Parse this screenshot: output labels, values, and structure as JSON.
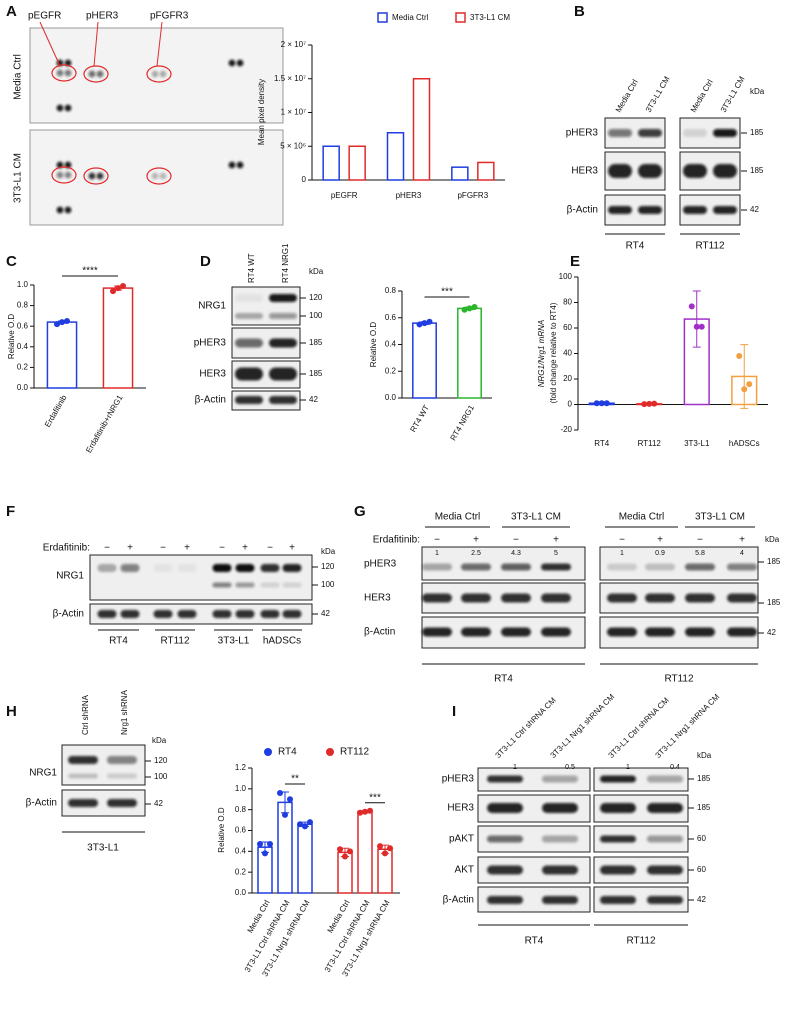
{
  "panel_labels": [
    "A",
    "B",
    "C",
    "D",
    "E",
    "F",
    "G",
    "H",
    "I"
  ],
  "array_blot": {
    "targets": [
      "pEGFR",
      "pHER3",
      "pFGFR3"
    ],
    "rows": [
      "Media Ctrl",
      "3T3-L1 CM"
    ]
  },
  "chart_data": [
    {
      "type": "bar",
      "bar_style": "outline",
      "legend": "top",
      "ylabel": "Mean pixel density",
      "categories": [
        "pEGFR",
        "pHER3",
        "pFGFR3"
      ],
      "series": [
        {
          "name": "Media Ctrl",
          "color": "#1f3de0",
          "values": [
            5000000,
            7000000,
            1900000
          ]
        },
        {
          "name": "3T3-L1 CM",
          "color": "#e02a2a",
          "values": [
            5000000,
            15000000,
            2600000
          ]
        }
      ],
      "ylim": [
        0,
        20000000
      ],
      "yticks": [
        0,
        {
          "value": 5000000,
          "label": "5 × 10⁶"
        },
        {
          "value": 10000000,
          "label": "1 × 10⁷"
        },
        {
          "value": 15000000,
          "label": "1.5 × 10⁷"
        },
        {
          "value": 20000000,
          "label": "2 × 10⁷"
        }
      ]
    },
    {
      "type": "bar",
      "bar_style": "outline",
      "ylabel": "Relative O.D",
      "categories": [
        "Erdafitinib",
        "Erdafitinib+rNRG1"
      ],
      "values": [
        0.64,
        0.97
      ],
      "errors": [
        0.01,
        0.02
      ],
      "points": [
        [
          0.62,
          0.64,
          0.65
        ],
        [
          0.94,
          0.97,
          0.99
        ]
      ],
      "colors": [
        "#1f3de0",
        "#e02a2a"
      ],
      "ylim": [
        0,
        1
      ],
      "yticks": [
        {
          "value": 0,
          "label": "0.0"
        },
        0.2,
        0.4,
        0.6,
        0.8,
        {
          "value": 1,
          "label": "1.0"
        }
      ],
      "significance": [
        "****"
      ]
    },
    {
      "type": "bar",
      "bar_style": "outline",
      "ylabel": "Relative O.D",
      "categories": [
        "RT4 WT",
        "RT4 NRG1"
      ],
      "values": [
        0.56,
        0.67
      ],
      "errors": [
        0.01,
        0.01
      ],
      "points": [
        [
          0.55,
          0.56,
          0.57
        ],
        [
          0.66,
          0.67,
          0.68
        ]
      ],
      "colors": [
        "#1f3de0",
        "#2ab52a"
      ],
      "ylim": [
        0,
        0.8
      ],
      "yticks": [
        {
          "value": 0,
          "label": "0.0"
        },
        0.2,
        0.4,
        0.6,
        0.8
      ],
      "significance": [
        "***"
      ]
    },
    {
      "type": "bar",
      "bar_style": "outline",
      "ylabel": "NRG1/Nrg1 mRNA",
      "ylabel_note": "(fold change relative to RT4)",
      "categories": [
        "RT4",
        "RT112",
        "3T3-L1",
        "hADSCs"
      ],
      "values": [
        1,
        0.5,
        67,
        22
      ],
      "errors": [
        0.5,
        0.3,
        22,
        25
      ],
      "points": [
        [
          1,
          1,
          1
        ],
        [
          0.3,
          0.5,
          0.7
        ],
        [
          77,
          61,
          61
        ],
        [
          38,
          12,
          16
        ]
      ],
      "colors": [
        "#1f3de0",
        "#e02a2a",
        "#a030c8",
        "#f0a040"
      ],
      "ylim": [
        -20,
        100
      ],
      "yticks": [
        -20,
        0,
        20,
        40,
        60,
        80,
        100
      ]
    },
    {
      "type": "bar",
      "bar_style": "outline",
      "legend": "top",
      "ylabel": "Relative O.D",
      "categories": [
        "Media Ctrl",
        "3T3-L1 Ctrl shRNA CM",
        "3T3-L1 Nrg1 shRNA CM"
      ],
      "series": [
        {
          "name": "RT4",
          "color": "#1f3de0",
          "values": [
            0.44,
            0.87,
            0.66
          ],
          "errors": [
            0.05,
            0.1,
            0.02
          ],
          "points": [
            [
              0.47,
              0.38,
              0.47
            ],
            [
              0.96,
              0.75,
              0.9
            ],
            [
              0.66,
              0.64,
              0.68
            ]
          ]
        },
        {
          "name": "RT112",
          "color": "#e02a2a",
          "values": [
            0.39,
            0.78,
            0.42
          ],
          "errors": [
            0.04,
            0.01,
            0.04
          ],
          "points": [
            [
              0.42,
              0.35,
              0.4
            ],
            [
              0.77,
              0.78,
              0.79
            ],
            [
              0.45,
              0.38,
              0.43
            ]
          ]
        }
      ],
      "ylim": [
        0,
        1.2
      ],
      "yticks": [
        {
          "value": 0,
          "label": "0.0"
        },
        0.2,
        0.4,
        0.6,
        0.8,
        {
          "value": 1,
          "label": "1.0"
        },
        1.2
      ],
      "significance": [
        "**",
        "***"
      ]
    }
  ],
  "blot_B": {
    "columns": [
      "Media Ctrl",
      "3T3-L1 CM",
      "Media Ctrl",
      "3T3-L1 CM"
    ],
    "rows": [
      "pHER3",
      "HER3",
      "β-Actin"
    ],
    "kda_label": "kDa",
    "kda": [
      "185",
      "185",
      "42"
    ],
    "groups": [
      "RT4",
      "RT112"
    ]
  },
  "blot_D": {
    "columns": [
      "RT4 WT",
      "RT4 NRG1"
    ],
    "rows": [
      "NRG1",
      "pHER3",
      "HER3",
      "β-Actin"
    ],
    "kda_label": "kDa",
    "kda": [
      "120",
      "100",
      "185",
      "185",
      "42"
    ]
  },
  "blot_F": {
    "treatment_label": "Erdafitinib:",
    "treatment": [
      "−",
      "+",
      "−",
      "+",
      "−",
      "+",
      "−",
      "+"
    ],
    "rows": [
      "NRG1",
      "β-Actin"
    ],
    "kda_label": "kDa",
    "kda": [
      "120",
      "100",
      "42"
    ],
    "groups": [
      "RT4",
      "RT112",
      "3T3-L1",
      "hADSCs"
    ]
  },
  "blot_G": {
    "conditions": [
      "Media Ctrl",
      "3T3-L1 CM",
      "Media Ctrl",
      "3T3-L1 CM"
    ],
    "treatment_label": "Erdafitinib:",
    "treatment": [
      "−",
      "+",
      "−",
      "+",
      "−",
      "+",
      "−",
      "+"
    ],
    "quant": [
      "1",
      "2.5",
      "4.3",
      "5",
      "1",
      "0.9",
      "5.8",
      "4"
    ],
    "rows": [
      "pHER3",
      "HER3",
      "β-Actin"
    ],
    "kda_label": "kDa",
    "kda": [
      "185",
      "185",
      "42"
    ],
    "groups": [
      "RT4",
      "RT112"
    ]
  },
  "blot_H": {
    "columns": [
      "Ctrl shRNA",
      "Nrg1 shRNA"
    ],
    "rows": [
      "NRG1",
      "β-Actin"
    ],
    "kda_label": "kDa",
    "kda": [
      "120",
      "100",
      "42"
    ],
    "group": "3T3-L1"
  },
  "blot_I": {
    "columns": [
      "3T3-L1 Ctrl shRNA CM",
      "3T3-L1 Nrg1 shRNA CM",
      "3T3-L1 Ctrl shRNA CM",
      "3T3-L1 Nrg1 shRNA CM"
    ],
    "quant": [
      "1",
      "0.5",
      "1",
      "0.4"
    ],
    "rows": [
      "pHER3",
      "HER3",
      "pAKT",
      "AKT",
      "β-Actin"
    ],
    "kda_label": "kDa",
    "kda": [
      "185",
      "185",
      "60",
      "60",
      "42"
    ],
    "groups": [
      "RT4",
      "RT112"
    ]
  }
}
